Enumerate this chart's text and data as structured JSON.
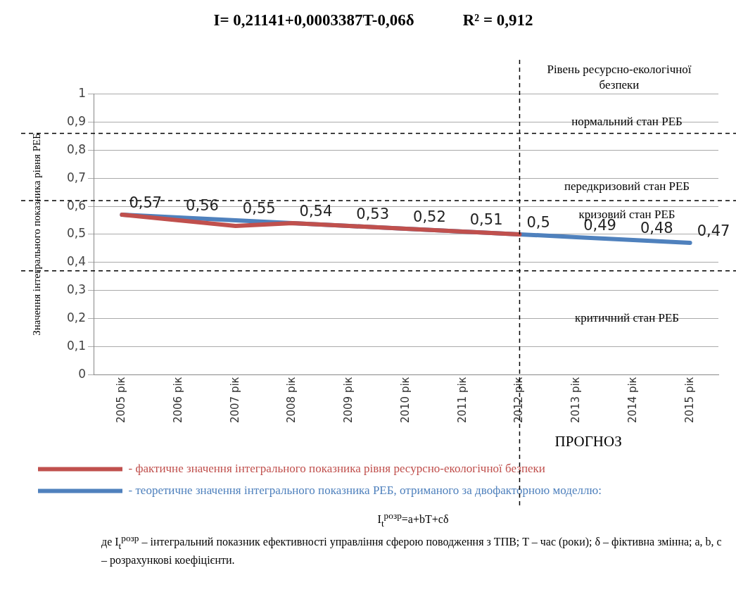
{
  "chart_data": {
    "type": "line",
    "title": "I= 0,21141+0,0003387T-0,06δ            R² = 0,912",
    "ylabel": "Значення інтегрального показника рівня РЕБ",
    "categories": [
      "2005 рік",
      "2006 рік",
      "2007 рік",
      "2008 рік",
      "2009 рік",
      "2010 рік",
      "2011 рік",
      "2012 рік",
      "2013 рік",
      "2014 рік",
      "2015 рік"
    ],
    "series": [
      {
        "name": "- фактичне значення інтегрального показника рівня ресурсно-екологічної безпеки",
        "color": "#c0504d",
        "values": [
          0.57,
          0.55,
          0.53,
          0.54,
          0.53,
          0.52,
          0.51,
          0.5,
          null,
          null,
          null
        ]
      },
      {
        "name": "- теоретичне значення інтегрального показника РЕБ, отриманого за двофакторною моделлю:",
        "color": "#4f81bd",
        "values": [
          0.57,
          0.56,
          0.55,
          0.54,
          0.53,
          0.52,
          0.51,
          0.5,
          0.49,
          0.48,
          0.47
        ],
        "value_labels": [
          "0,57",
          "0,56",
          "0,55",
          "0,54",
          "0,53",
          "0,52",
          "0,51",
          "0,5",
          "0,49",
          "0,48",
          "0,47"
        ]
      }
    ],
    "ylim": [
      0,
      1
    ],
    "yticks": [
      0,
      {
        "value": 0.1,
        "label": "0,1"
      },
      {
        "value": 0.2,
        "label": "0,2"
      },
      {
        "value": 0.3,
        "label": "0,3"
      },
      {
        "value": 0.4,
        "label": "0,4"
      },
      {
        "value": 0.5,
        "label": "0,5"
      },
      {
        "value": 0.6,
        "label": "0,6"
      },
      {
        "value": 0.7,
        "label": "0,7"
      },
      {
        "value": 0.8,
        "label": "0,8"
      },
      {
        "value": 0.9,
        "label": "0,9"
      },
      1
    ],
    "grid": "y",
    "legend": "bottom",
    "marker": "none",
    "line_style": "solid",
    "ref_lines": [
      {
        "axis": "y",
        "value": 0.86,
        "color": "#000000",
        "line_style": "dashed"
      },
      {
        "axis": "y",
        "value": 0.62,
        "color": "#000000",
        "line_style": "dashed"
      },
      {
        "axis": "y",
        "value": 0.37,
        "color": "#000000",
        "line_style": "dashed"
      },
      {
        "axis": "x",
        "value": "2012 рік",
        "color": "#000000",
        "line_style": "dashed"
      }
    ],
    "annotations": [
      "Рівень ресурсно-екологічної безпеки",
      "ПРОГНОЗ",
      "нормальний стан РЕБ",
      "передкризовий стан РЕБ",
      "кризовий стан РЕБ",
      "критичний стан РЕБ",
      "I$_{t}$$^{розр}$=a+bT+cδ",
      "де I$_{t}$$^{розр}$ – інтегральний показник ефективності управління сферою поводження з ТПВ; T – час (роки); δ – фіктивна змінна; a, b, c – розрахункові коефіцієнти."
    ]
  }
}
